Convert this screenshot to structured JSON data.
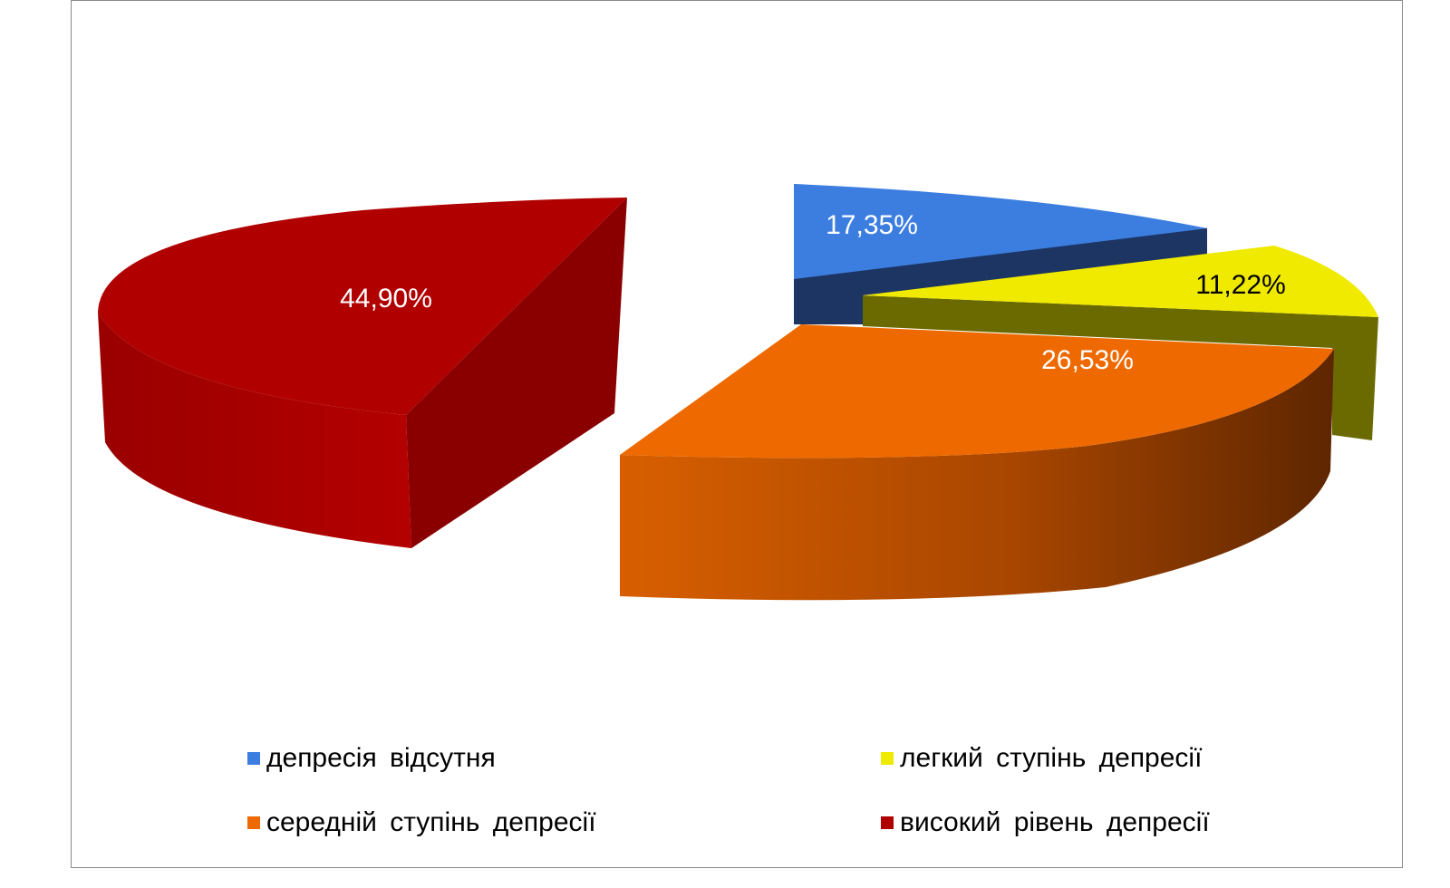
{
  "chart_data": {
    "type": "pie",
    "style": "3d-exploded",
    "categories": [
      "депресія  відсутня",
      "легкий  ступінь  депресії",
      "середній  ступінь  депресії",
      "високий  рівень  депресії"
    ],
    "values": [
      17.35,
      11.22,
      26.53,
      44.9
    ],
    "data_labels": [
      "17,35%",
      "11,22%",
      "26,53%",
      "44,90%"
    ],
    "colors": [
      "#3c7ee0",
      "#f0ea00",
      "#ee6a00",
      "#b00000"
    ],
    "legend_position": "bottom"
  },
  "legend": [
    {
      "label": "депресія  відсутня",
      "color": "#3c7ee0"
    },
    {
      "label": "легкий  ступінь  депресії",
      "color": "#f0ea00"
    },
    {
      "label": "середній  ступінь  депресії",
      "color": "#ee6a00"
    },
    {
      "label": "високий  рівень  депресії",
      "color": "#b00000"
    }
  ]
}
